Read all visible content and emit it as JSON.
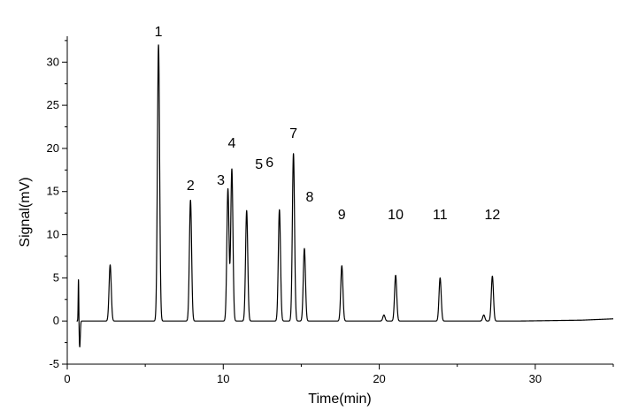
{
  "chart_data": {
    "type": "line",
    "title": "",
    "xlabel": "Time(min)",
    "ylabel": "Signal(mV)",
    "xlim": [
      0,
      35
    ],
    "ylim": [
      -5,
      33
    ],
    "x_ticks": [
      0,
      10,
      20,
      30
    ],
    "y_ticks": [
      -5,
      0,
      5,
      10,
      15,
      20,
      25,
      30
    ],
    "grid": false,
    "legend": "none",
    "line_color": "#000000",
    "baseline_drift": [
      [
        29.0,
        0.0
      ],
      [
        33.0,
        0.1
      ],
      [
        35.0,
        0.25
      ]
    ],
    "injection_artifact": {
      "x": 0.75,
      "high": 5.0,
      "low": -3.0
    },
    "unlabeled_peaks": [
      {
        "rt": 2.75,
        "height": 6.5
      },
      {
        "rt": 20.3,
        "height": 0.7
      },
      {
        "rt": 26.7,
        "height": 0.7
      }
    ],
    "peaks": [
      {
        "label": "1",
        "rt": 5.85,
        "height": 32.0
      },
      {
        "label": "2",
        "rt": 7.9,
        "height": 14.0
      },
      {
        "label": "3",
        "rt": 10.3,
        "height": 15.3
      },
      {
        "label": "4",
        "rt": 10.55,
        "height": 17.6
      },
      {
        "label": "5",
        "rt": 11.5,
        "height": 12.8
      },
      {
        "label": "6",
        "rt": 13.6,
        "height": 12.9
      },
      {
        "label": "7",
        "rt": 14.5,
        "height": 19.4
      },
      {
        "label": "8",
        "rt": 15.2,
        "height": 8.4
      },
      {
        "label": "9",
        "rt": 17.6,
        "height": 6.4
      },
      {
        "label": "10",
        "rt": 21.05,
        "height": 5.3
      },
      {
        "label": "11",
        "rt": 23.9,
        "height": 5.0
      },
      {
        "label": "12",
        "rt": 27.25,
        "height": 5.2
      }
    ]
  }
}
